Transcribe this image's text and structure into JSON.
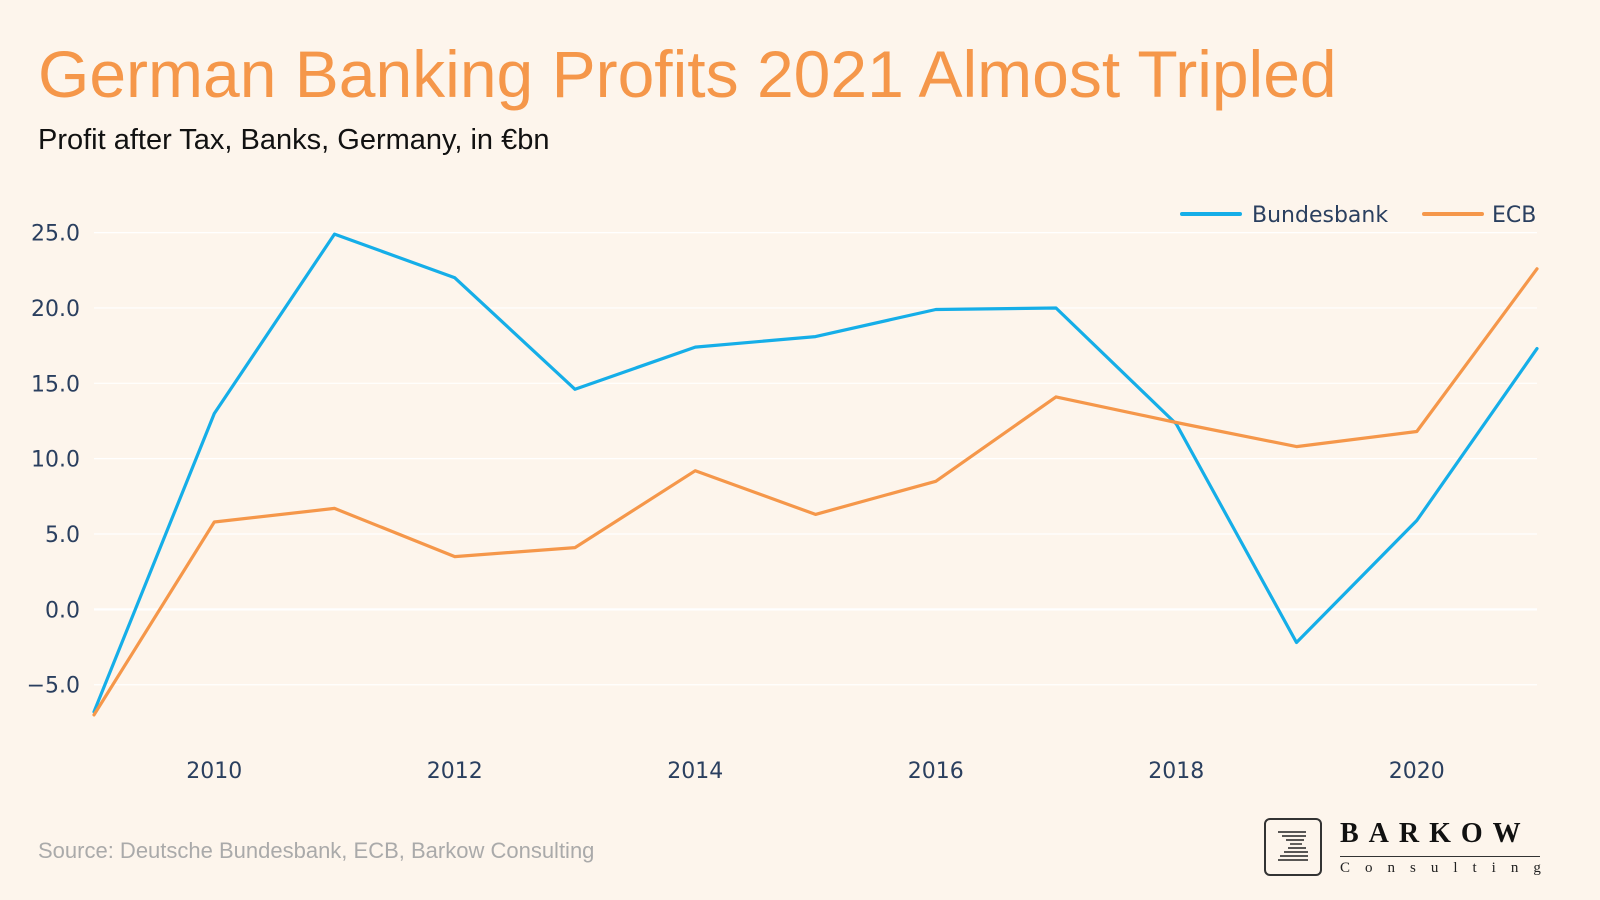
{
  "header": {
    "title": "German Banking Profits 2021 Almost Tripled",
    "subtitle": "Profit after Tax, Banks, Germany, in €bn"
  },
  "footer": {
    "source": "Source: Deutsche Bundesbank, ECB, Barkow Consulting",
    "logo_name": "BARKOW",
    "logo_sub": "Consulting"
  },
  "colors": {
    "background": "#fdf5ec",
    "bundesbank": "#15aee8",
    "ecb": "#f5974a",
    "title": "#f5974a",
    "axis_text": "#2a3f5f",
    "grid": "#ffffff"
  },
  "chart_data": {
    "type": "line",
    "title": "German Banking Profits 2021 Almost Tripled",
    "subtitle": "Profit after Tax, Banks, Germany, in €bn",
    "xlabel": "",
    "ylabel": "",
    "x": [
      2009,
      2010,
      2011,
      2012,
      2013,
      2014,
      2015,
      2016,
      2017,
      2018,
      2019,
      2020,
      2021
    ],
    "xlim": [
      2009,
      2021
    ],
    "ylim": [
      -9,
      26.5
    ],
    "x_ticks": [
      2010,
      2012,
      2014,
      2016,
      2018,
      2020
    ],
    "x_tick_labels": [
      "2010",
      "2012",
      "2014",
      "2016",
      "2018",
      "2020"
    ],
    "y_ticks": [
      -5,
      0,
      5,
      10,
      15,
      20,
      25
    ],
    "y_tick_labels": [
      "−5.0",
      "0.0",
      "5.0",
      "10.0",
      "15.0",
      "20.0",
      "25.0"
    ],
    "grid": true,
    "legend_position": "top-right",
    "series": [
      {
        "name": "Bundesbank",
        "color": "#15aee8",
        "values": [
          -6.8,
          13.0,
          24.9,
          22.0,
          14.6,
          17.4,
          18.1,
          19.9,
          20.0,
          12.3,
          -2.2,
          5.9,
          17.3
        ]
      },
      {
        "name": "ECB",
        "color": "#f5974a",
        "values": [
          -7.0,
          5.8,
          6.7,
          3.5,
          4.1,
          9.2,
          6.3,
          8.5,
          14.1,
          12.4,
          10.8,
          11.8,
          22.6
        ]
      }
    ]
  }
}
